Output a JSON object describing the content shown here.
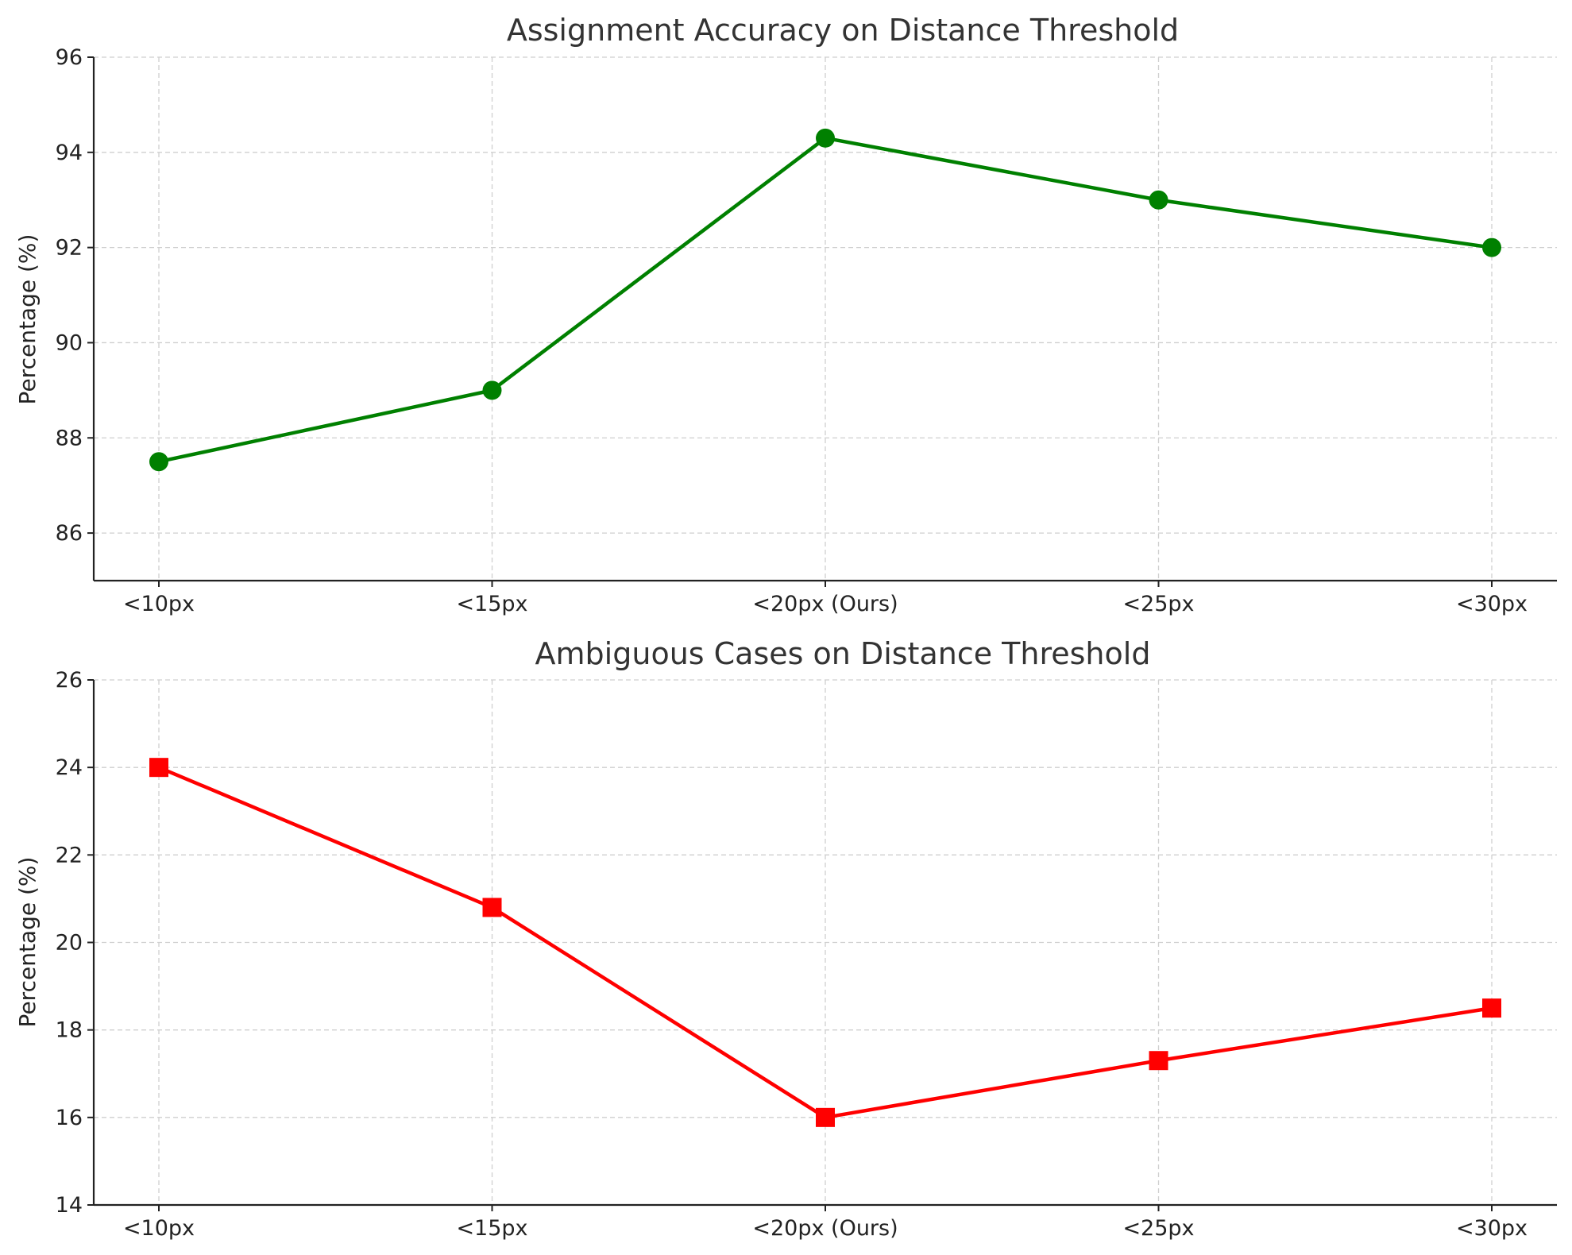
{
  "chart_data": [
    {
      "type": "line",
      "title": "Assignment Accuracy on Distance Threshold",
      "xlabel": "",
      "ylabel": "Percentage (%)",
      "categories": [
        "<10px",
        "<15px",
        "<20px (Ours)",
        "<25px",
        "<30px"
      ],
      "values": [
        87.5,
        89.0,
        94.3,
        93.0,
        92.0
      ],
      "ylim": [
        85,
        96
      ],
      "yticks": [
        86,
        88,
        90,
        92,
        94,
        96
      ],
      "marker": "circle",
      "color": "#008000",
      "grid": true
    },
    {
      "type": "line",
      "title": "Ambiguous Cases on Distance Threshold",
      "xlabel": "",
      "ylabel": "Percentage (%)",
      "categories": [
        "<10px",
        "<15px",
        "<20px (Ours)",
        "<25px",
        "<30px"
      ],
      "values": [
        24.0,
        20.8,
        16.0,
        17.3,
        18.5
      ],
      "ylim": [
        14,
        26
      ],
      "yticks": [
        14,
        16,
        18,
        20,
        22,
        24,
        26
      ],
      "marker": "square",
      "color": "#ff0000",
      "grid": true
    }
  ]
}
